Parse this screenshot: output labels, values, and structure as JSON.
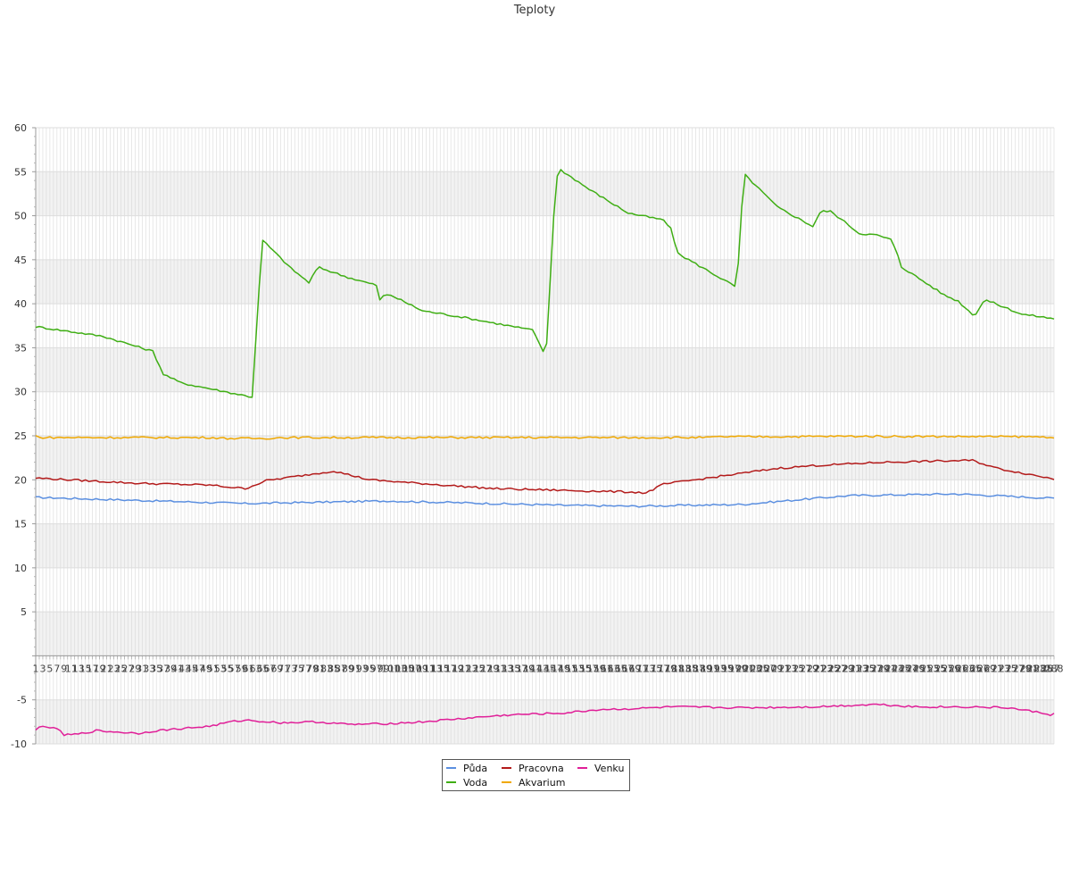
{
  "chart_data": {
    "type": "line",
    "title": "Teploty",
    "xlabel": "",
    "ylabel": "",
    "ylim": [
      -10,
      60
    ],
    "yticks": [
      -10,
      -5,
      5,
      10,
      15,
      20,
      25,
      30,
      35,
      40,
      45,
      50,
      55,
      60
    ],
    "grid": true,
    "legend_position": "bottom-center",
    "n_points": 288,
    "x_tick_labels_shown": [
      "1",
      "3",
      "5",
      "7",
      "9",
      "11",
      "13",
      "15",
      "17",
      "19",
      "21",
      "23",
      "25",
      "27",
      "29",
      "31",
      "33",
      "35",
      "37",
      "39",
      "41",
      "43",
      "45",
      "47",
      "49",
      "51",
      "53",
      "55",
      "57",
      "59",
      "61",
      "63",
      "65",
      "67",
      "69",
      "71",
      "73",
      "75",
      "77",
      "79",
      "81",
      "83",
      "85",
      "87",
      "89",
      "91",
      "93",
      "95",
      "97",
      "99",
      "101",
      "103",
      "105",
      "107",
      "109",
      "111",
      "113",
      "115",
      "117",
      "119",
      "121",
      "123",
      "125",
      "127",
      "129",
      "131",
      "133",
      "135",
      "137",
      "139",
      "141",
      "143",
      "145",
      "147",
      "149",
      "151",
      "153",
      "155",
      "157",
      "159",
      "161",
      "163",
      "165",
      "167",
      "169",
      "171",
      "173",
      "175",
      "177",
      "179",
      "181",
      "183",
      "185",
      "187",
      "189",
      "191",
      "193",
      "195",
      "197",
      "199",
      "201",
      "203",
      "205",
      "207",
      "209",
      "211",
      "213",
      "215",
      "217",
      "219",
      "221",
      "223",
      "225",
      "227",
      "229",
      "231",
      "233",
      "235",
      "237",
      "239",
      "241",
      "243",
      "245",
      "247",
      "249",
      "251",
      "253",
      "255",
      "257",
      "259",
      "261",
      "263",
      "265",
      "267",
      "269",
      "271",
      "273",
      "275",
      "277",
      "279",
      "281",
      "283",
      "285",
      "287",
      "288"
    ],
    "series": [
      {
        "name": "Půda",
        "color": "#5b8fe0",
        "anchors": [
          [
            1,
            18.0
          ],
          [
            10,
            17.9
          ],
          [
            60,
            17.3
          ],
          [
            100,
            17.6
          ],
          [
            150,
            17.1
          ],
          [
            170,
            17.0
          ],
          [
            200,
            17.2
          ],
          [
            230,
            18.2
          ],
          [
            260,
            18.4
          ],
          [
            288,
            17.9
          ]
        ]
      },
      {
        "name": "Voda",
        "color": "#3fae14",
        "anchors": [
          [
            1,
            37.4
          ],
          [
            20,
            36.3
          ],
          [
            34,
            34.6
          ],
          [
            37,
            32.0
          ],
          [
            42,
            31.0
          ],
          [
            62,
            29.4
          ],
          [
            64,
            42.0
          ],
          [
            65,
            47.2
          ],
          [
            68,
            46.0
          ],
          [
            73,
            44.0
          ],
          [
            78,
            42.4
          ],
          [
            80,
            43.8
          ],
          [
            81,
            44.1
          ],
          [
            89,
            43.0
          ],
          [
            97,
            42.1
          ],
          [
            98,
            40.4
          ],
          [
            99,
            40.9
          ],
          [
            101,
            41.0
          ],
          [
            110,
            39.2
          ],
          [
            121,
            38.5
          ],
          [
            141,
            37.0
          ],
          [
            143,
            35.5
          ],
          [
            144,
            34.5
          ],
          [
            145,
            35.5
          ],
          [
            147,
            50.0
          ],
          [
            148,
            54.5
          ],
          [
            149,
            55.2
          ],
          [
            157,
            53.0
          ],
          [
            168,
            50.3
          ],
          [
            178,
            49.5
          ],
          [
            180,
            48.5
          ],
          [
            182,
            45.7
          ],
          [
            198,
            42.0
          ],
          [
            199,
            44.5
          ],
          [
            200,
            51.0
          ],
          [
            201,
            54.6
          ],
          [
            202,
            54.2
          ],
          [
            210,
            51.0
          ],
          [
            220,
            48.8
          ],
          [
            222,
            50.3
          ],
          [
            223,
            50.5
          ],
          [
            225,
            50.5
          ],
          [
            230,
            49.0
          ],
          [
            233,
            48.0
          ],
          [
            238,
            47.8
          ],
          [
            242,
            47.3
          ],
          [
            244,
            45.5
          ],
          [
            245,
            44.2
          ],
          [
            257,
            41.0
          ],
          [
            261,
            40.3
          ],
          [
            265,
            38.8
          ],
          [
            266,
            38.9
          ],
          [
            268,
            40.2
          ],
          [
            269,
            40.4
          ],
          [
            279,
            38.8
          ],
          [
            283,
            38.6
          ],
          [
            288,
            38.3
          ]
        ]
      },
      {
        "name": "Pracovna",
        "color": "#b31b1b",
        "anchors": [
          [
            1,
            20.2
          ],
          [
            20,
            19.8
          ],
          [
            30,
            19.6
          ],
          [
            50,
            19.4
          ],
          [
            60,
            19.0
          ],
          [
            66,
            19.9
          ],
          [
            85,
            21.0
          ],
          [
            95,
            20.0
          ],
          [
            130,
            19.0
          ],
          [
            150,
            18.8
          ],
          [
            170,
            18.6
          ],
          [
            173,
            18.5
          ],
          [
            178,
            19.5
          ],
          [
            210,
            21.3
          ],
          [
            220,
            21.6
          ],
          [
            240,
            22.0
          ],
          [
            265,
            22.2
          ],
          [
            272,
            21.3
          ],
          [
            288,
            20.1
          ]
        ]
      },
      {
        "name": "Akvarium",
        "color": "#f0a800",
        "anchors": [
          [
            1,
            25.0
          ],
          [
            2,
            24.8
          ],
          [
            50,
            24.8
          ],
          [
            55,
            24.7
          ],
          [
            65,
            24.7
          ],
          [
            70,
            24.8
          ],
          [
            190,
            24.8
          ],
          [
            195,
            24.9
          ],
          [
            210,
            24.9
          ],
          [
            230,
            24.95
          ],
          [
            280,
            24.9
          ],
          [
            288,
            24.85
          ]
        ]
      },
      {
        "name": "Venku",
        "color": "#e01f98",
        "anchors": [
          [
            1,
            -8.5
          ],
          [
            2,
            -8.1
          ],
          [
            4,
            -8.0
          ],
          [
            8,
            -8.5
          ],
          [
            9,
            -9.0
          ],
          [
            13,
            -8.9
          ],
          [
            18,
            -8.5
          ],
          [
            30,
            -8.8
          ],
          [
            35,
            -8.5
          ],
          [
            50,
            -8.0
          ],
          [
            56,
            -7.5
          ],
          [
            60,
            -7.3
          ],
          [
            70,
            -7.6
          ],
          [
            80,
            -7.5
          ],
          [
            90,
            -7.8
          ],
          [
            100,
            -7.7
          ],
          [
            110,
            -7.5
          ],
          [
            125,
            -7.0
          ],
          [
            135,
            -6.7
          ],
          [
            150,
            -6.5
          ],
          [
            160,
            -6.1
          ],
          [
            170,
            -6.0
          ],
          [
            180,
            -5.8
          ],
          [
            200,
            -5.9
          ],
          [
            220,
            -5.8
          ],
          [
            238,
            -5.5
          ],
          [
            250,
            -5.8
          ],
          [
            265,
            -5.8
          ],
          [
            275,
            -5.9
          ],
          [
            285,
            -6.5
          ],
          [
            287,
            -6.7
          ],
          [
            288,
            -6.6
          ]
        ]
      }
    ]
  }
}
